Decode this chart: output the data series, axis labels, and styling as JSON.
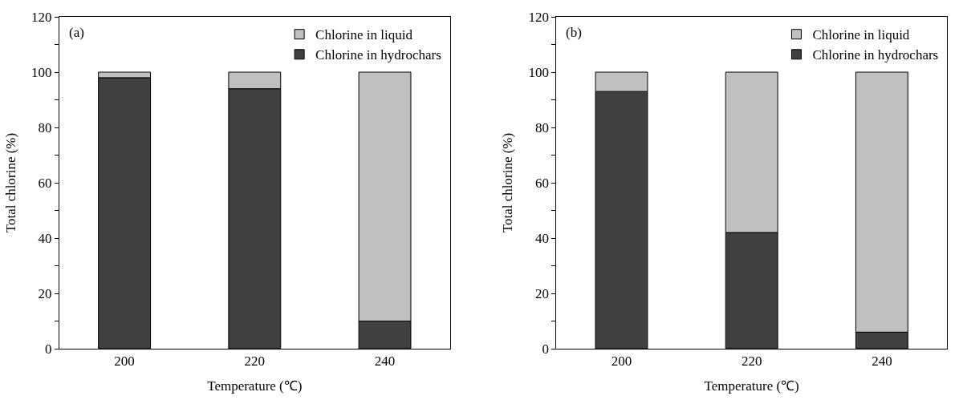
{
  "chart_data": [
    {
      "type": "bar",
      "stacked": true,
      "xlabel": "Temperature (℃)",
      "ylabel": "Total chlorine (%)",
      "annotations": [
        "(a)"
      ],
      "categories": [
        "200",
        "220",
        "240"
      ],
      "series": [
        {
          "name": "Chlorine in hydrochars",
          "color": "#404040",
          "values": [
            98,
            94,
            10
          ]
        },
        {
          "name": "Chlorine in liquid",
          "color": "#c0c0c0",
          "values": [
            2,
            6,
            90
          ]
        }
      ],
      "ylim": [
        0,
        120
      ],
      "yticks": [
        0,
        {
          "value": 10,
          "label": null
        },
        20,
        {
          "value": 30,
          "label": null
        },
        40,
        {
          "value": 50,
          "label": null
        },
        60,
        {
          "value": 70,
          "label": null
        },
        80,
        {
          "value": 90,
          "label": null
        },
        100,
        {
          "value": 110,
          "label": null
        },
        120
      ],
      "legend": "top right"
    },
    {
      "type": "bar",
      "stacked": true,
      "xlabel": "Temperature (℃)",
      "ylabel": "Total chlorine (%)",
      "annotations": [
        "(b)"
      ],
      "categories": [
        "200",
        "220",
        "240"
      ],
      "series": [
        {
          "name": "Chlorine in hydrochars",
          "color": "#404040",
          "values": [
            93,
            42,
            6
          ]
        },
        {
          "name": "Chlorine in liquid",
          "color": "#c0c0c0",
          "values": [
            7,
            58,
            94
          ]
        }
      ],
      "ylim": [
        0,
        120
      ],
      "yticks": [
        0,
        {
          "value": 10,
          "label": null
        },
        20,
        {
          "value": 30,
          "label": null
        },
        40,
        {
          "value": 50,
          "label": null
        },
        60,
        {
          "value": 70,
          "label": null
        },
        80,
        {
          "value": 90,
          "label": null
        },
        100,
        {
          "value": 110,
          "label": null
        },
        120
      ],
      "legend": "top right"
    }
  ]
}
